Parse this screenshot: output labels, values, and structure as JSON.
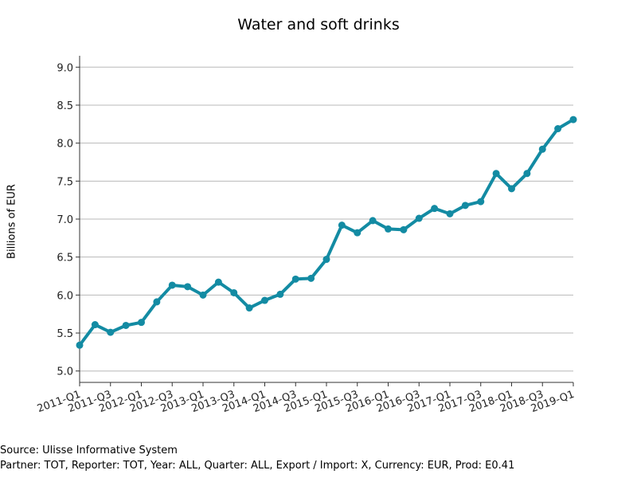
{
  "chart_data": {
    "type": "line",
    "title": "Water and soft drinks",
    "ylabel": "Billions of EUR",
    "xlabel": "",
    "ylim": [
      4.85,
      9.15
    ],
    "y_ticks": [
      "5.0",
      "5.5",
      "6.0",
      "6.5",
      "7.0",
      "7.5",
      "8.0",
      "8.5",
      "9.0"
    ],
    "x_ticks": [
      "2011-Q1",
      "2011-Q3",
      "2012-Q1",
      "2012-Q3",
      "2013-Q1",
      "2013-Q3",
      "2014-Q1",
      "2014-Q3",
      "2015-Q1",
      "2015-Q3",
      "2016-Q1",
      "2016-Q3",
      "2017-Q1",
      "2017-Q3",
      "2018-Q1",
      "2018-Q3",
      "2019-Q1"
    ],
    "grid": true,
    "color": "#138ba3",
    "series": [
      {
        "x": [
          "2011-Q1",
          "2011-Q2",
          "2011-Q3",
          "2011-Q4",
          "2012-Q1",
          "2012-Q2",
          "2012-Q3",
          "2012-Q4",
          "2013-Q1",
          "2013-Q2",
          "2013-Q3",
          "2013-Q4",
          "2014-Q1",
          "2014-Q2",
          "2014-Q3",
          "2014-Q4",
          "2015-Q1",
          "2015-Q2",
          "2015-Q3",
          "2015-Q4",
          "2016-Q1",
          "2016-Q2",
          "2016-Q3",
          "2016-Q4",
          "2017-Q1",
          "2017-Q2",
          "2017-Q3",
          "2017-Q4",
          "2018-Q1",
          "2018-Q2",
          "2018-Q3",
          "2018-Q4",
          "2019-Q1"
        ],
        "values": [
          5.34,
          5.61,
          5.51,
          5.6,
          5.64,
          5.91,
          6.13,
          6.11,
          6.0,
          6.17,
          6.03,
          5.83,
          5.93,
          6.01,
          6.21,
          6.22,
          6.47,
          6.92,
          6.82,
          6.98,
          6.87,
          6.86,
          7.01,
          7.14,
          7.07,
          7.18,
          7.23,
          7.6,
          7.4,
          7.6,
          7.92,
          8.19,
          8.31
        ]
      }
    ]
  },
  "footer": {
    "source": "Source: Ulisse Informative System",
    "meta": "Partner: TOT, Reporter: TOT, Year: ALL, Quarter: ALL, Export / Import: X, Currency: EUR, Prod: E0.41"
  }
}
